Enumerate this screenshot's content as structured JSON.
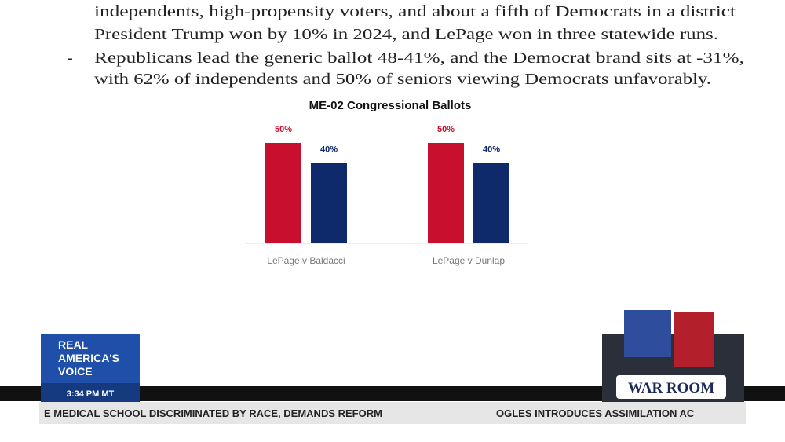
{
  "document": {
    "lines": [
      "independents, high-propensity voters, and about a fifth of Democrats in a district",
      "President Trump won by 10% in 2024, and LePage won in three statewide runs.",
      "Republicans lead the generic ballot 48-41%, and the Democrat brand sits at -31%,",
      "with 62% of independents and 50% of seniors viewing Democrats unfavorably."
    ],
    "bullet": "-"
  },
  "chart_data": {
    "type": "bar",
    "title": "ME-02 Congressional Ballots",
    "categories": [
      "LePage v Baldacci",
      "LePage v Dunlap"
    ],
    "series": [
      {
        "color": "#c8102e",
        "values": [
          50,
          50
        ],
        "value_labels": [
          "50%",
          "50%"
        ]
      },
      {
        "color": "#0f2a6b",
        "values": [
          40,
          40
        ],
        "value_labels": [
          "40%",
          "40%"
        ]
      }
    ]
  },
  "broadcast": {
    "network": [
      "REAL",
      "AMERICA'S",
      "VOICE"
    ],
    "clock": "3:34 PM MT",
    "show": "WAR ROOM",
    "ticker": [
      "E MEDICAL SCHOOL DISCRIMINATED BY RACE, DEMANDS REFORM",
      "OGLES INTRODUCES ASSIMILATION AC"
    ]
  }
}
